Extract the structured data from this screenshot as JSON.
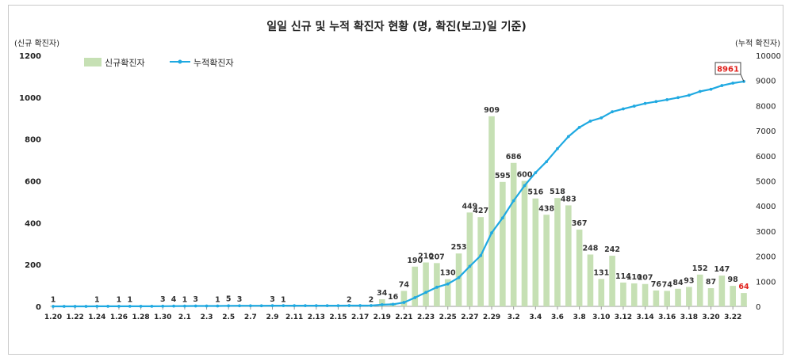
{
  "chart_data": {
    "type": "bar+line",
    "title": "일일 신규 및 누적 확진자 현황 (명, 확진(보고)일 기준)",
    "ylabel_left": "(신규 확진자)",
    "ylabel_right": "(누적 확진자)",
    "ylim_left": [
      0,
      1200
    ],
    "yticks_left": [
      "0",
      "200",
      "400",
      "600",
      "800",
      "1000",
      "1200"
    ],
    "ylim_right": [
      0,
      10000
    ],
    "yticks_right": [
      "0",
      "1000",
      "2000",
      "3000",
      "4000",
      "5000",
      "6000",
      "7000",
      "8000",
      "9000",
      "10000"
    ],
    "grid": false,
    "legend": {
      "position": "top-left",
      "bar_label": "신규확진자",
      "line_label": "누적확진자"
    },
    "categories": [
      "1.20",
      "1.21",
      "1.22",
      "1.23",
      "1.24",
      "1.25",
      "1.26",
      "1.27",
      "1.28",
      "1.29",
      "1.30",
      "1.31",
      "2.1",
      "2.2",
      "2.3",
      "2.4",
      "2.5",
      "2.6",
      "2.7",
      "2.8",
      "2.9",
      "2.10",
      "2.11",
      "2.12",
      "2.13",
      "2.14",
      "2.15",
      "2.16",
      "2.17",
      "2.18",
      "2.19",
      "2.20",
      "2.21",
      "2.22",
      "2.23",
      "2.24",
      "2.25",
      "2.26",
      "2.27",
      "2.28",
      "2.29",
      "3.1",
      "3.2",
      "3.3",
      "3.4",
      "3.5",
      "3.6",
      "3.7",
      "3.8",
      "3.9",
      "3.10",
      "3.11",
      "3.12",
      "3.13",
      "3.14",
      "3.15",
      "3.16",
      "3.17",
      "3.18",
      "3.19",
      "3.20",
      "3.21",
      "3.22",
      "3.23"
    ],
    "xtick_labels": [
      "1.20",
      "1.22",
      "1.24",
      "1.26",
      "1.28",
      "1.30",
      "2.1",
      "2.3",
      "2.5",
      "2.7",
      "2.9",
      "2.11",
      "2.13",
      "2.15",
      "2.17",
      "2.19",
      "2.21",
      "2.23",
      "2.25",
      "2.27",
      "2.29",
      "3.2",
      "3.4",
      "3.6",
      "3.8",
      "3.10",
      "3.12",
      "3.14",
      "3.16",
      "3.18",
      "3.20",
      "3.22"
    ],
    "series": [
      {
        "name": "신규확진자",
        "kind": "bar",
        "axis": "left",
        "color": "#c6e0b4",
        "values": [
          1,
          0,
          0,
          0,
          1,
          0,
          1,
          1,
          0,
          0,
          3,
          4,
          1,
          3,
          0,
          1,
          5,
          3,
          0,
          0,
          3,
          1,
          0,
          0,
          0,
          0,
          0,
          2,
          0,
          2,
          34,
          16,
          74,
          190,
          210,
          207,
          130,
          253,
          449,
          427,
          909,
          595,
          686,
          600,
          516,
          438,
          518,
          483,
          367,
          248,
          131,
          242,
          114,
          110,
          107,
          76,
          74,
          84,
          93,
          152,
          87,
          147,
          98,
          64
        ]
      },
      {
        "name": "누적확진자",
        "kind": "line",
        "axis": "right",
        "color": "#1fa9e1",
        "values": [
          1,
          1,
          1,
          1,
          2,
          2,
          3,
          4,
          4,
          4,
          7,
          11,
          12,
          15,
          15,
          16,
          21,
          24,
          24,
          24,
          27,
          28,
          28,
          28,
          28,
          28,
          28,
          30,
          30,
          32,
          66,
          82,
          156,
          346,
          556,
          763,
          893,
          1146,
          1595,
          2022,
          2931,
          3526,
          4212,
          4812,
          5328,
          5766,
          6284,
          6767,
          7134,
          7382,
          7513,
          7755,
          7869,
          7979,
          8086,
          8162,
          8236,
          8320,
          8413,
          8565,
          8652,
          8799,
          8897,
          8961
        ]
      }
    ],
    "bar_labels": [
      {
        "i": 0,
        "text": "1"
      },
      {
        "i": 4,
        "text": "1"
      },
      {
        "i": 6,
        "text": "1"
      },
      {
        "i": 7,
        "text": "1"
      },
      {
        "i": 10,
        "text": "3"
      },
      {
        "i": 11,
        "text": "4"
      },
      {
        "i": 12,
        "text": "1"
      },
      {
        "i": 13,
        "text": "3"
      },
      {
        "i": 15,
        "text": "1"
      },
      {
        "i": 16,
        "text": "5"
      },
      {
        "i": 17,
        "text": "3"
      },
      {
        "i": 20,
        "text": "3"
      },
      {
        "i": 21,
        "text": "1"
      },
      {
        "i": 27,
        "text": "2"
      },
      {
        "i": 29,
        "text": "2"
      },
      {
        "i": 30,
        "text": "34"
      },
      {
        "i": 31,
        "text": "16"
      },
      {
        "i": 32,
        "text": "74"
      },
      {
        "i": 33,
        "text": "190"
      },
      {
        "i": 34,
        "text": "210"
      },
      {
        "i": 35,
        "text": "207"
      },
      {
        "i": 36,
        "text": "130"
      },
      {
        "i": 37,
        "text": "253"
      },
      {
        "i": 38,
        "text": "449"
      },
      {
        "i": 39,
        "text": "427"
      },
      {
        "i": 40,
        "text": "909"
      },
      {
        "i": 41,
        "text": "595"
      },
      {
        "i": 42,
        "text": "686"
      },
      {
        "i": 43,
        "text": "600"
      },
      {
        "i": 44,
        "text": "516"
      },
      {
        "i": 45,
        "text": "438"
      },
      {
        "i": 46,
        "text": "518"
      },
      {
        "i": 47,
        "text": "483"
      },
      {
        "i": 48,
        "text": "367"
      },
      {
        "i": 49,
        "text": "248"
      },
      {
        "i": 50,
        "text": "131"
      },
      {
        "i": 51,
        "text": "242"
      },
      {
        "i": 52,
        "text": "114"
      },
      {
        "i": 53,
        "text": "110"
      },
      {
        "i": 54,
        "text": "107"
      },
      {
        "i": 55,
        "text": "76"
      },
      {
        "i": 56,
        "text": "74"
      },
      {
        "i": 57,
        "text": "84"
      },
      {
        "i": 58,
        "text": "93"
      },
      {
        "i": 59,
        "text": "152"
      },
      {
        "i": 60,
        "text": "87"
      },
      {
        "i": 61,
        "text": "147"
      },
      {
        "i": 62,
        "text": "98"
      },
      {
        "i": 63,
        "text": "64",
        "highlight": true
      }
    ],
    "callout": {
      "i": 63,
      "text": "8961"
    },
    "highlight_color": "#e0201b"
  }
}
